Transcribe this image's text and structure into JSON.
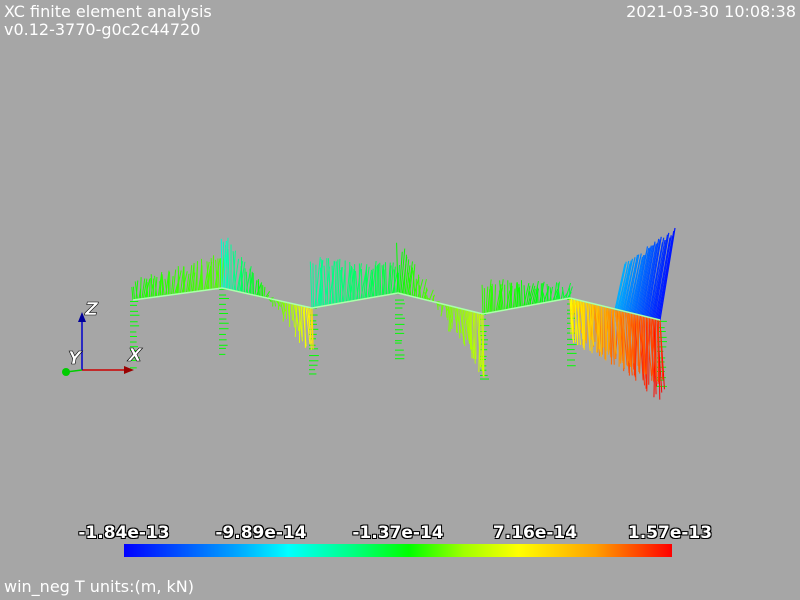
{
  "header": {
    "title": "XC finite element analysis",
    "version": "v0.12-3770-g0c2c44720",
    "timestamp": "2021-03-30 10:08:38"
  },
  "axes": {
    "x_label": "X",
    "y_label": "Y",
    "z_label": "Z"
  },
  "colorbar": {
    "tick_labels": [
      "-1.84e-13",
      "-9.89e-14",
      "-1.37e-14",
      "7.16e-14",
      "1.57e-13"
    ],
    "colors": [
      "#0000ff",
      "#00ffff",
      "#00ff00",
      "#ffff00",
      "#ff0000"
    ]
  },
  "footer": {
    "caption": "win_neg T units:(m, kN)"
  },
  "colors": {
    "background": "#a6a6a6",
    "x_axis": "#cc0000",
    "y_axis": "#00cc00",
    "z_axis": "#0000cc"
  }
}
